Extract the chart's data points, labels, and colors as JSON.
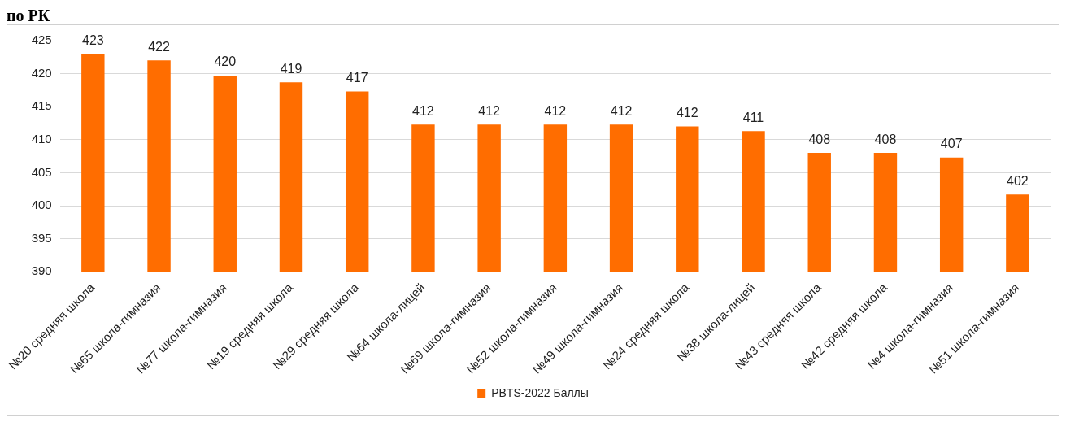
{
  "chart_data": {
    "type": "bar",
    "title": "по РК",
    "categories": [
      "№20 средняя школа",
      "№65 школа-гимназия",
      "№77 школа-гимназия",
      "№19 средняя школа",
      "№29 средняя школа",
      "№64 школа-лицей",
      "№69 школа-гимназия",
      "№52 школа-гимназия",
      "№49 школа-гимназия",
      "№24 средняя школа",
      "№38 школа-лицей",
      "№43 средняя школа",
      "№42 средняя школа",
      "№4 школа-гимназия",
      "№51 школа-гимназия"
    ],
    "series": [
      {
        "name": "PBTS-2022 Баллы",
        "color": "#ff6d00",
        "values": [
          423,
          422,
          419.7,
          418.7,
          417.3,
          412.3,
          412.3,
          412.3,
          412.3,
          412,
          411.3,
          408,
          408,
          407.3,
          401.7
        ],
        "value_labels": [
          "423",
          "422",
          "420",
          "419",
          "417",
          "412",
          "412",
          "412",
          "412",
          "412",
          "411",
          "408",
          "408",
          "407",
          "402"
        ]
      }
    ],
    "ylim": [
      390,
      425
    ],
    "yticks": [
      390,
      395,
      400,
      405,
      410,
      415,
      420,
      425
    ],
    "grid": "y",
    "legend": "bottom"
  }
}
